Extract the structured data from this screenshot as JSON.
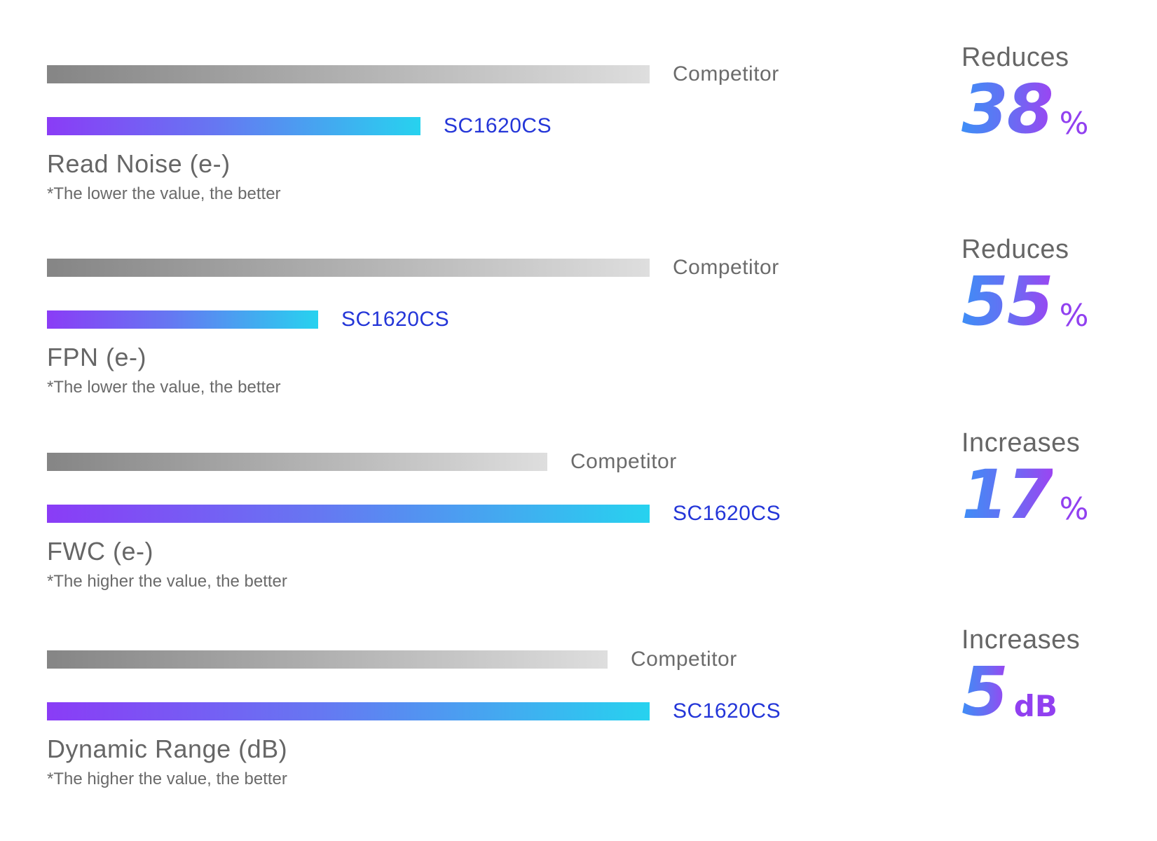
{
  "chart_data": {
    "type": "bar",
    "orientation": "horizontal",
    "scale_note": "",
    "colors": {
      "competitor_start": "#858585",
      "competitor_end": "#dedede",
      "product_start": "#8a3cf6",
      "product_end": "#27d2ef",
      "product_label": "#2436d8",
      "stat_gradient_start": "#3e8ef6",
      "stat_gradient_end": "#9b45f2"
    },
    "metrics": [
      {
        "name": "Read Noise (e-)",
        "note": "*The lower the value, the better",
        "bars": [
          {
            "label": "Competitor",
            "relative_value": 100
          },
          {
            "label": "SC1620CS",
            "relative_value": 62
          }
        ],
        "stat": {
          "verb": "Reduces",
          "number": "38",
          "unit": "%"
        }
      },
      {
        "name": "FPN (e-)",
        "note": "*The lower the value, the better",
        "bars": [
          {
            "label": "Competitor",
            "relative_value": 100
          },
          {
            "label": "SC1620CS",
            "relative_value": 45
          }
        ],
        "stat": {
          "verb": "Reduces",
          "number": "55",
          "unit": "%"
        }
      },
      {
        "name": "FWC (e-)",
        "note": "*The higher the value, the better",
        "bars": [
          {
            "label": "Competitor",
            "relative_value": 83
          },
          {
            "label": "SC1620CS",
            "relative_value": 100
          }
        ],
        "stat": {
          "verb": "Increases",
          "number": "17",
          "unit": "%"
        }
      },
      {
        "name": "Dynamic Range (dB)",
        "note": "*The higher the value, the better",
        "bars": [
          {
            "label": "Competitor",
            "relative_value": 93
          },
          {
            "label": "SC1620CS",
            "relative_value": 100
          }
        ],
        "stat": {
          "verb": "Increases",
          "number": "5",
          "unit": "dB"
        }
      }
    ]
  }
}
